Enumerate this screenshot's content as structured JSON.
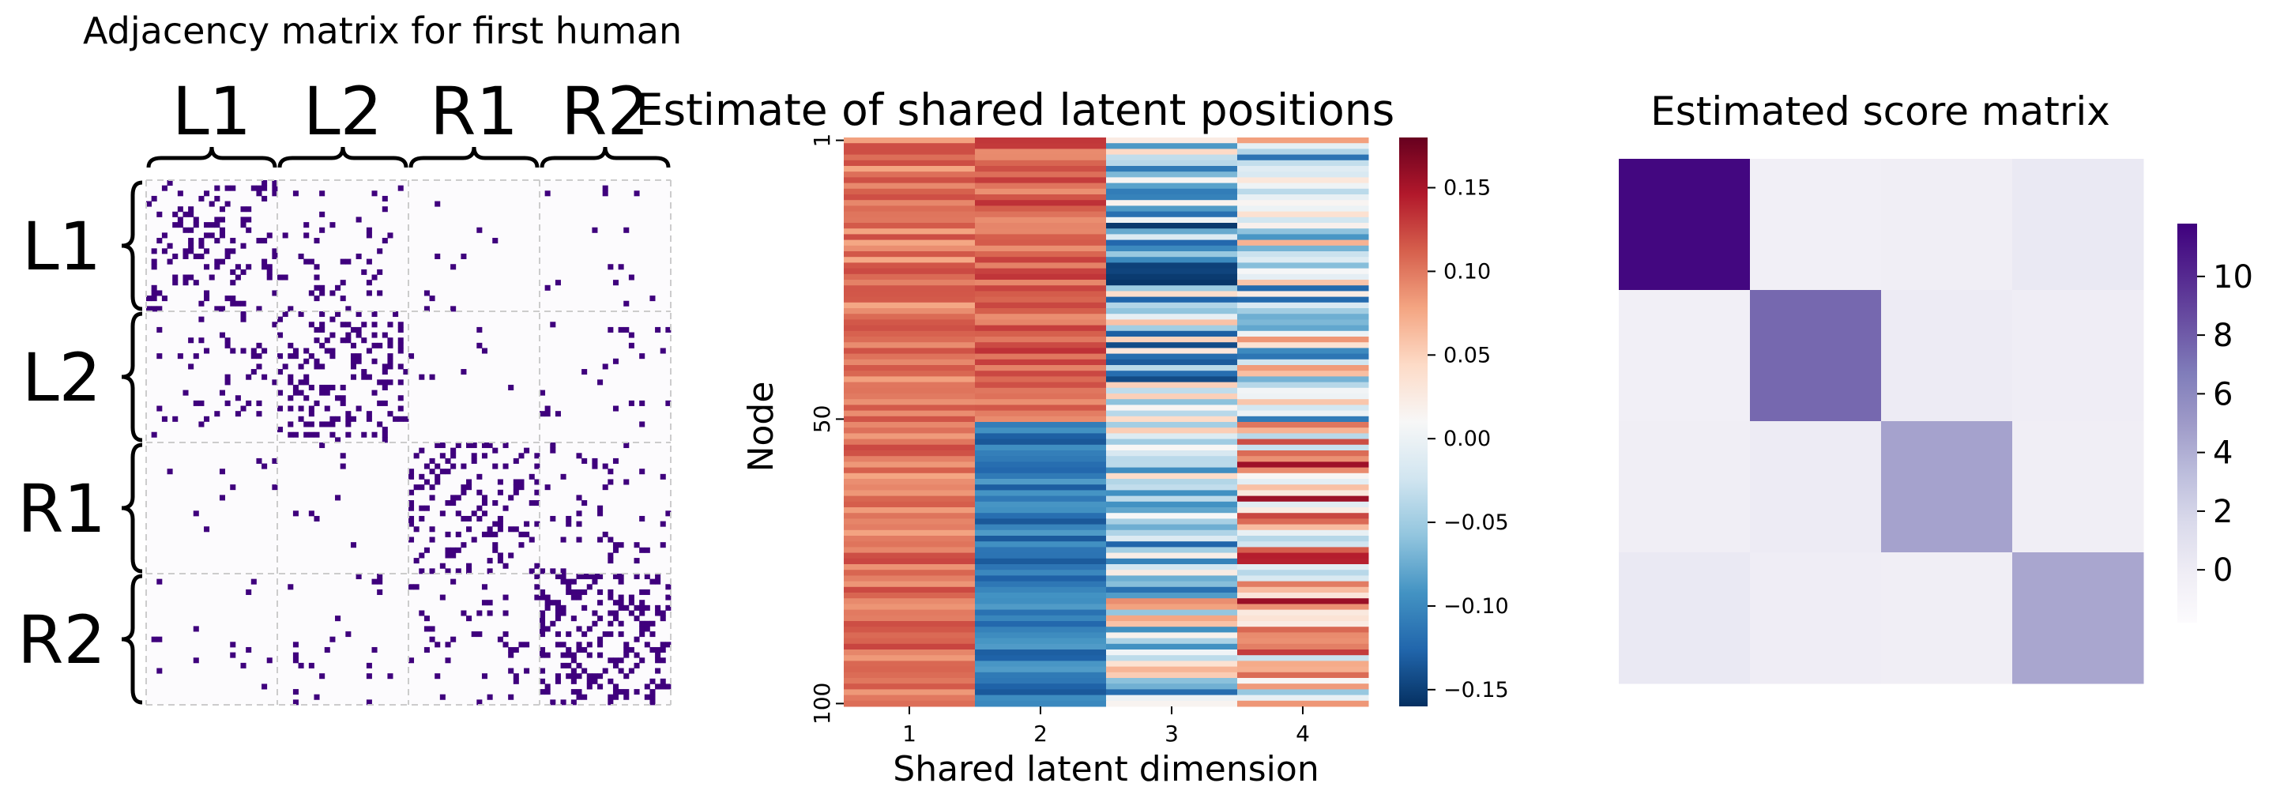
{
  "chart_data": [
    {
      "type": "heatmap",
      "title": "Adjacency matrix for first human",
      "block_labels": [
        "L1",
        "L2",
        "R1",
        "R2"
      ],
      "n_nodes": 100,
      "values": "binary adjacency matrix (0/1)",
      "block_edge_density": [
        [
          0.22,
          0.08,
          0.01,
          0.02
        ],
        [
          0.08,
          0.28,
          0.02,
          0.03
        ],
        [
          0.01,
          0.02,
          0.24,
          0.09
        ],
        [
          0.02,
          0.03,
          0.09,
          0.32
        ]
      ],
      "colors": {
        "edge": "#3f007d",
        "empty": "#fcfbfd",
        "grid": "#cccccc"
      }
    },
    {
      "type": "heatmap",
      "title": "Estimate of shared latent positions",
      "xlabel": "Shared latent dimension",
      "ylabel": "Node",
      "x_ticks": [
        "1",
        "2",
        "3",
        "4"
      ],
      "y_ticks": [
        "1",
        "50",
        "100"
      ],
      "n_nodes": 100,
      "colormap": "RdBu_r",
      "vmin": -0.16,
      "vmax": 0.18,
      "colorbar_ticks": [
        "0.15",
        "0.10",
        "0.05",
        "0.00",
        "−0.05",
        "−0.10",
        "−0.15"
      ],
      "colorbar_tick_values": [
        0.15,
        0.1,
        0.05,
        0.0,
        -0.05,
        -0.1,
        -0.15
      ],
      "column_means_nodes_1_50": [
        0.1,
        0.11,
        -0.05,
        -0.02
      ],
      "column_means_nodes_51_100": [
        0.1,
        -0.11,
        -0.02,
        0.05
      ]
    },
    {
      "type": "heatmap",
      "title": "Estimated score matrix",
      "colormap": "Purples",
      "vmin": -1.8,
      "vmax": 11.8,
      "values": [
        [
          11.5,
          -0.3,
          -0.2,
          0.3
        ],
        [
          -0.3,
          7.5,
          0.1,
          -0.1
        ],
        [
          -0.2,
          0.1,
          4.6,
          -0.2
        ],
        [
          0.3,
          -0.1,
          -0.2,
          4.4
        ]
      ],
      "colorbar_ticks": [
        "10",
        "8",
        "6",
        "4",
        "2",
        "0"
      ],
      "colorbar_tick_values": [
        10,
        8,
        6,
        4,
        2,
        0
      ]
    }
  ]
}
